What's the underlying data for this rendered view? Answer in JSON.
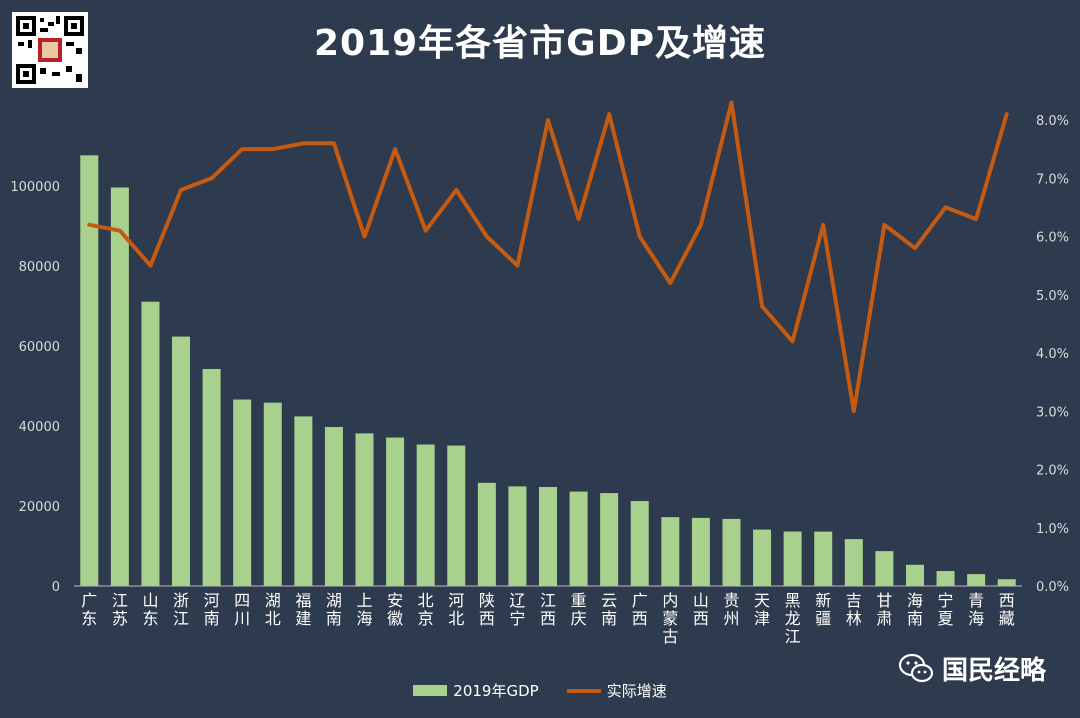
{
  "chart_data": {
    "type": "bar+line",
    "title": "2019年各省市GDP及增速",
    "categories": [
      "广东",
      "江苏",
      "山东",
      "浙江",
      "河南",
      "四川",
      "湖北",
      "福建",
      "湖南",
      "上海",
      "安徽",
      "北京",
      "河北",
      "陕西",
      "辽宁",
      "江西",
      "重庆",
      "云南",
      "广西",
      "内蒙古",
      "山西",
      "贵州",
      "天津",
      "黑龙江",
      "新疆",
      "吉林",
      "甘肃",
      "海南",
      "宁夏",
      "青海",
      "西藏"
    ],
    "series": [
      {
        "name": "2019年GDP",
        "type": "bar",
        "axis": "left",
        "color": "#a9d18e",
        "values": [
          107671,
          99632,
          71068,
          62352,
          54259,
          46616,
          45828,
          42395,
          39752,
          38155,
          37114,
          35371,
          35105,
          25793,
          24909,
          24758,
          23606,
          23224,
          21237,
          17213,
          17027,
          16769,
          14104,
          13613,
          13597,
          11727,
          8718,
          5309,
          3748,
          2966,
          1698
        ]
      },
      {
        "name": "实际增速",
        "type": "line",
        "axis": "right",
        "color": "#c55a11",
        "values": [
          6.2,
          6.1,
          5.5,
          6.8,
          7.0,
          7.5,
          7.5,
          7.6,
          7.6,
          6.0,
          7.5,
          6.1,
          6.8,
          6.0,
          5.5,
          8.0,
          6.3,
          8.1,
          6.0,
          5.2,
          6.2,
          8.3,
          4.8,
          4.2,
          6.2,
          3.0,
          6.2,
          5.8,
          6.5,
          6.3,
          8.1
        ]
      }
    ],
    "y_left": {
      "range": [
        0,
        100000
      ],
      "ticks": [
        0,
        20000,
        40000,
        60000,
        80000,
        100000
      ],
      "tick_labels": [
        "0",
        "20000",
        "40000",
        "60000",
        "80000",
        "100000"
      ]
    },
    "y_right": {
      "range": [
        0,
        8
      ],
      "ticks": [
        0,
        1,
        2,
        3,
        4,
        5,
        6,
        7,
        8
      ],
      "tick_labels": [
        "0.0%",
        "1.0%",
        "2.0%",
        "3.0%",
        "4.0%",
        "5.0%",
        "6.0%",
        "7.0%",
        "8.0%"
      ]
    },
    "grid": false,
    "legend": "bottom"
  },
  "watermark": {
    "icon": "wechat-icon",
    "text": "国民经略"
  },
  "qr_code": {
    "icon": "qr-code-icon"
  },
  "colors": {
    "background": "#2e3a4d",
    "text": "#ffffff",
    "axis_text": "#d9d9d9"
  }
}
